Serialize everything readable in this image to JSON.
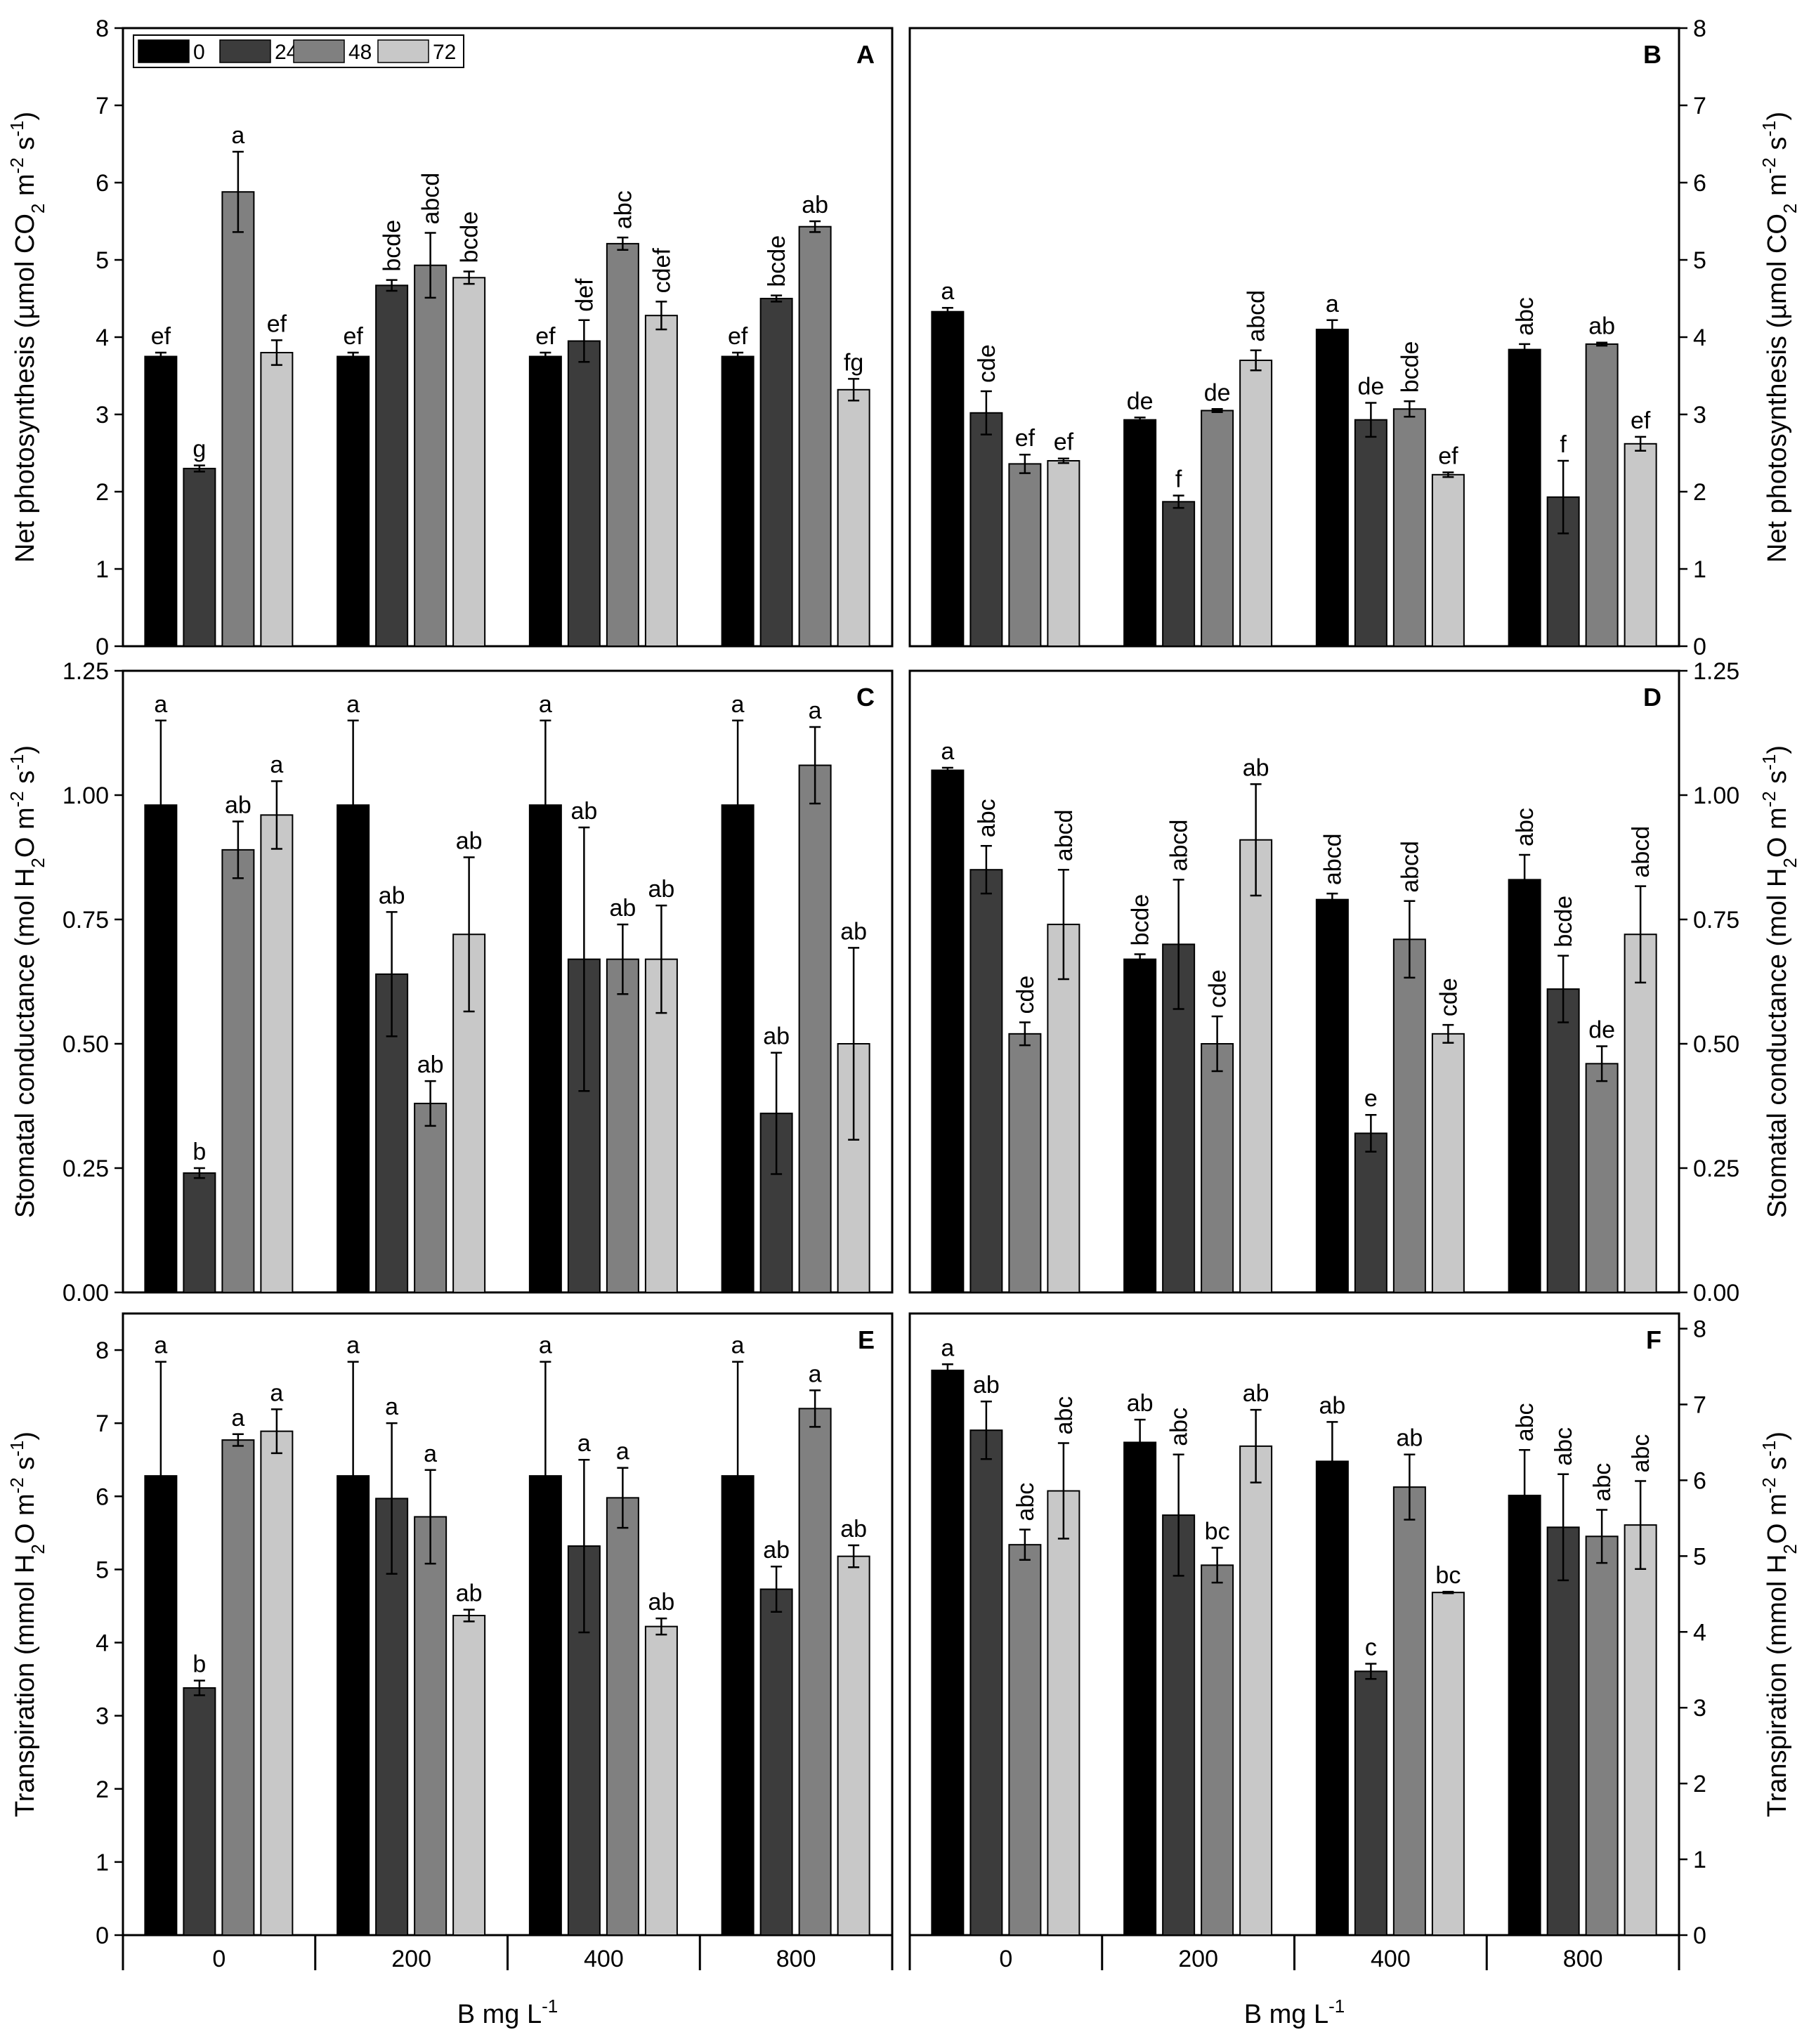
{
  "legend": {
    "entries": [
      "0",
      "24",
      "48",
      "72"
    ],
    "colors": [
      "#000000",
      "#3c3c3c",
      "#808080",
      "#c8c8c8"
    ]
  },
  "x_axis": {
    "categories": [
      "0",
      "200",
      "400",
      "800"
    ],
    "label_main": "B mg L",
    "label_sup": "-1"
  },
  "chart_data": [
    {
      "panel": "A",
      "type": "bar",
      "ylim": [
        0,
        8
      ],
      "yticks": [
        "0",
        "1",
        "2",
        "3",
        "4",
        "5",
        "6",
        "7",
        "8"
      ],
      "ylabel_parts": [
        [
          "Net photosynthesis (µmol CO",
          ""
        ],
        [
          "2",
          "sub"
        ],
        [
          " m",
          ""
        ],
        [
          "-2",
          "sup"
        ],
        [
          " s",
          ""
        ],
        [
          "-1",
          "sup"
        ],
        [
          ")",
          ""
        ]
      ],
      "categories": [
        "0",
        "200",
        "400",
        "800"
      ],
      "series": [
        {
          "name": "0",
          "values": [
            3.75,
            3.75,
            3.75,
            3.75
          ],
          "errors": [
            0.05,
            0.05,
            0.05,
            0.05
          ],
          "letters": [
            "ef",
            "ef",
            "ef",
            "ef"
          ]
        },
        {
          "name": "24",
          "values": [
            2.3,
            4.67,
            3.95,
            4.5
          ],
          "errors": [
            0.04,
            0.07,
            0.27,
            0.04
          ],
          "letters": [
            "g",
            "bcde",
            "def",
            "bcde"
          ]
        },
        {
          "name": "48",
          "values": [
            5.88,
            4.93,
            5.21,
            5.43
          ],
          "errors": [
            0.52,
            0.42,
            0.08,
            0.07
          ],
          "letters": [
            "a",
            "abcd",
            "abc",
            "ab"
          ]
        },
        {
          "name": "72",
          "values": [
            3.8,
            4.77,
            4.28,
            3.32
          ],
          "errors": [
            0.16,
            0.08,
            0.18,
            0.14
          ],
          "letters": [
            "ef",
            "bcde",
            "cdef",
            "fg"
          ]
        }
      ]
    },
    {
      "panel": "B",
      "type": "bar",
      "ylim": [
        0,
        8
      ],
      "yticks": [
        "0",
        "1",
        "2",
        "3",
        "4",
        "5",
        "6",
        "7",
        "8"
      ],
      "ylabel_parts": [
        [
          "Net photosynthesis (µmol CO",
          ""
        ],
        [
          "2",
          "sub"
        ],
        [
          " m",
          ""
        ],
        [
          "-2",
          "sup"
        ],
        [
          " s",
          ""
        ],
        [
          "-1",
          "sup"
        ],
        [
          ")",
          ""
        ]
      ],
      "categories": [
        "0",
        "200",
        "400",
        "800"
      ],
      "series": [
        {
          "name": "0",
          "values": [
            4.33,
            2.93,
            4.1,
            3.84
          ],
          "errors": [
            0.05,
            0.03,
            0.12,
            0.07
          ],
          "letters": [
            "a",
            "de",
            "a",
            "abc"
          ]
        },
        {
          "name": "24",
          "values": [
            3.02,
            1.87,
            2.93,
            1.93
          ],
          "errors": [
            0.28,
            0.08,
            0.22,
            0.47
          ],
          "letters": [
            "cde",
            "f",
            "de",
            "f"
          ]
        },
        {
          "name": "48",
          "values": [
            2.36,
            3.05,
            3.07,
            3.91
          ],
          "errors": [
            0.12,
            0.02,
            0.1,
            0.02
          ],
          "letters": [
            "ef",
            "de",
            "bcde",
            "ab"
          ]
        },
        {
          "name": "72",
          "values": [
            2.4,
            3.7,
            2.22,
            2.62
          ],
          "errors": [
            0.03,
            0.13,
            0.03,
            0.09
          ],
          "letters": [
            "ef",
            "abcd",
            "ef",
            "ef"
          ]
        }
      ]
    },
    {
      "panel": "C",
      "type": "bar",
      "ylim": [
        0,
        1.25
      ],
      "yticks": [
        "0.00",
        "0.25",
        "0.50",
        "0.75",
        "1.00",
        "1.25"
      ],
      "ylabel_parts": [
        [
          "Stomatal conductance (mol H",
          ""
        ],
        [
          "2",
          "sub"
        ],
        [
          "O m",
          ""
        ],
        [
          "-2",
          "sup"
        ],
        [
          " s",
          ""
        ],
        [
          "-1",
          "sup"
        ],
        [
          ")",
          ""
        ]
      ],
      "categories": [
        "0",
        "200",
        "400",
        "800"
      ],
      "series": [
        {
          "name": "0",
          "values": [
            0.98,
            0.98,
            0.98,
            0.98
          ],
          "errors": [
            0.17,
            0.17,
            0.17,
            0.17
          ],
          "letters": [
            "a",
            "a",
            "a",
            "a"
          ]
        },
        {
          "name": "24",
          "values": [
            0.24,
            0.64,
            0.67,
            0.36
          ],
          "errors": [
            0.01,
            0.125,
            0.265,
            0.122
          ],
          "letters": [
            "b",
            "ab",
            "ab",
            "ab"
          ]
        },
        {
          "name": "48",
          "values": [
            0.89,
            0.38,
            0.67,
            1.06
          ],
          "errors": [
            0.057,
            0.045,
            0.07,
            0.077
          ],
          "letters": [
            "ab",
            "ab",
            "ab",
            "a"
          ]
        },
        {
          "name": "72",
          "values": [
            0.96,
            0.72,
            0.67,
            0.5
          ],
          "errors": [
            0.068,
            0.155,
            0.108,
            0.193
          ],
          "letters": [
            "a",
            "ab",
            "ab",
            "ab"
          ]
        }
      ]
    },
    {
      "panel": "D",
      "type": "bar",
      "ylim": [
        0,
        1.25
      ],
      "yticks": [
        "0.00",
        "0.25",
        "0.50",
        "0.75",
        "1.00",
        "1.25"
      ],
      "ylabel_parts": [
        [
          "Stomatal conductance (mol H",
          ""
        ],
        [
          "2",
          "sub"
        ],
        [
          "O m",
          ""
        ],
        [
          "-2",
          "sup"
        ],
        [
          " s",
          ""
        ],
        [
          "-1",
          "sup"
        ],
        [
          ")",
          ""
        ]
      ],
      "categories": [
        "0",
        "200",
        "400",
        "800"
      ],
      "series": [
        {
          "name": "0",
          "values": [
            1.05,
            0.67,
            0.79,
            0.83
          ],
          "errors": [
            0.005,
            0.01,
            0.012,
            0.05
          ],
          "letters": [
            "a",
            "bcde",
            "abcd",
            "abc"
          ]
        },
        {
          "name": "24",
          "values": [
            0.85,
            0.7,
            0.32,
            0.61
          ],
          "errors": [
            0.048,
            0.13,
            0.037,
            0.067
          ],
          "letters": [
            "abc",
            "abcd",
            "e",
            "bcde"
          ]
        },
        {
          "name": "48",
          "values": [
            0.52,
            0.5,
            0.71,
            0.46
          ],
          "errors": [
            0.023,
            0.055,
            0.077,
            0.035
          ],
          "letters": [
            "cde",
            "cde",
            "abcd",
            "de"
          ]
        },
        {
          "name": "72",
          "values": [
            0.74,
            0.91,
            0.52,
            0.72
          ],
          "errors": [
            0.11,
            0.112,
            0.018,
            0.097
          ],
          "letters": [
            "abcd",
            "ab",
            "cde",
            "abcd"
          ]
        }
      ]
    },
    {
      "panel": "E",
      "type": "bar",
      "ylim": [
        0,
        8.5
      ],
      "yticks": [
        "0",
        "1",
        "2",
        "3",
        "4",
        "5",
        "6",
        "7",
        "8"
      ],
      "ylabel_parts": [
        [
          "Transpiration (mmol H",
          ""
        ],
        [
          "2",
          "sub"
        ],
        [
          "O m",
          ""
        ],
        [
          "-2",
          "sup"
        ],
        [
          " s",
          ""
        ],
        [
          "-1",
          "sup"
        ],
        [
          ")",
          ""
        ]
      ],
      "categories": [
        "0",
        "200",
        "400",
        "800"
      ],
      "series": [
        {
          "name": "0",
          "values": [
            6.28,
            6.28,
            6.28,
            6.28
          ],
          "errors": [
            1.56,
            1.56,
            1.56,
            1.56
          ],
          "letters": [
            "a",
            "a",
            "a",
            "a"
          ]
        },
        {
          "name": "24",
          "values": [
            3.38,
            5.97,
            5.32,
            4.73
          ],
          "errors": [
            0.1,
            1.03,
            1.18,
            0.31
          ],
          "letters": [
            "b",
            "a",
            "a",
            "ab"
          ]
        },
        {
          "name": "48",
          "values": [
            6.77,
            5.72,
            5.98,
            7.2
          ],
          "errors": [
            0.08,
            0.64,
            0.41,
            0.25
          ],
          "letters": [
            "a",
            "a",
            "a",
            "a"
          ]
        },
        {
          "name": "72",
          "values": [
            6.89,
            4.37,
            4.22,
            5.18
          ],
          "errors": [
            0.3,
            0.08,
            0.11,
            0.15
          ],
          "letters": [
            "a",
            "ab",
            "ab",
            "ab"
          ]
        }
      ]
    },
    {
      "panel": "F",
      "type": "bar",
      "ylim": [
        0,
        8.2
      ],
      "yticks": [
        "0",
        "1",
        "2",
        "3",
        "4",
        "5",
        "6",
        "7",
        "8"
      ],
      "ylabel_parts": [
        [
          "Transpiration (mmol H",
          ""
        ],
        [
          "2",
          "sub"
        ],
        [
          "O m",
          ""
        ],
        [
          "-2",
          "sup"
        ],
        [
          " s",
          ""
        ],
        [
          "-1",
          "sup"
        ],
        [
          ")",
          ""
        ]
      ],
      "categories": [
        "0",
        "200",
        "400",
        "800"
      ],
      "series": [
        {
          "name": "0",
          "values": [
            7.45,
            6.5,
            6.25,
            5.8
          ],
          "errors": [
            0.08,
            0.3,
            0.52,
            0.6
          ],
          "letters": [
            "a",
            "ab",
            "ab",
            "abc"
          ]
        },
        {
          "name": "24",
          "values": [
            6.66,
            5.54,
            3.48,
            5.38
          ],
          "errors": [
            0.38,
            0.8,
            0.1,
            0.7
          ],
          "letters": [
            "ab",
            "abc",
            "c",
            "abc"
          ]
        },
        {
          "name": "48",
          "values": [
            5.15,
            4.88,
            5.91,
            5.26
          ],
          "errors": [
            0.2,
            0.23,
            0.43,
            0.35
          ],
          "letters": [
            "abc",
            "bc",
            "ab",
            "abc"
          ]
        },
        {
          "name": "72",
          "values": [
            5.86,
            6.45,
            4.52,
            5.41
          ],
          "errors": [
            0.63,
            0.48,
            0.01,
            0.58
          ],
          "letters": [
            "abc",
            "ab",
            "bc",
            "abc"
          ]
        }
      ]
    }
  ]
}
